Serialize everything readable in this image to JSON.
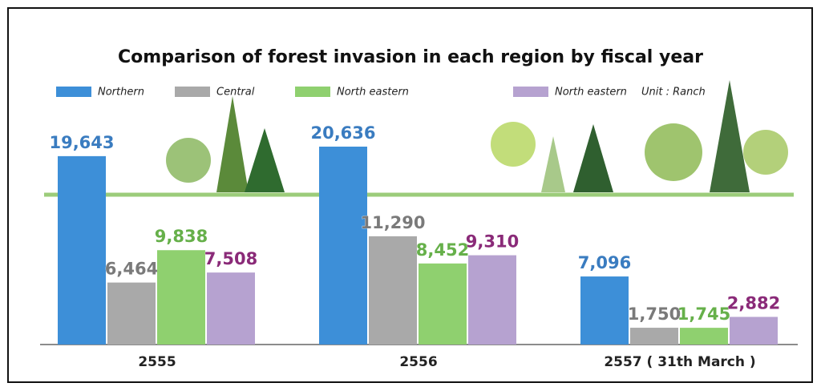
{
  "chart_data": {
    "type": "bar",
    "title": "Comparison of forest invasion in each region by fiscal year",
    "unit": "Unit : Ranch",
    "categories": [
      "2555",
      "2556",
      "2557 ( 31th March )"
    ],
    "series": [
      {
        "name": "Northern",
        "color": "#3d8fd8",
        "label_color": "#3a7cc0",
        "values": [
          19643,
          20636,
          7096
        ],
        "value_labels": [
          "19,643",
          "20,636",
          "7,096"
        ]
      },
      {
        "name": "Central",
        "color": "#a9a9a9",
        "label_color": "#7a7a7a",
        "values": [
          6464,
          11290,
          1750
        ],
        "value_labels": [
          "6,464",
          "11,290",
          "1,750"
        ]
      },
      {
        "name": "North eastern",
        "color": "#8fd06f",
        "label_color": "#66b04a",
        "values": [
          9838,
          8452,
          1745
        ],
        "value_labels": [
          "9,838",
          "8,452",
          "1,745"
        ]
      },
      {
        "name": "North eastern",
        "color": "#b6a2d0",
        "label_color": "#8a2a78",
        "values": [
          7508,
          9310,
          2882
        ],
        "value_labels": [
          "7,508",
          "9,310",
          "2,882"
        ]
      }
    ]
  }
}
